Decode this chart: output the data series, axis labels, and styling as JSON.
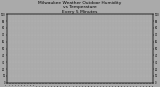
{
  "title": "Milwaukee Weather Outdoor Humidity\nvs Temperature\nEvery 5 Minutes",
  "title_fontsize": 3.2,
  "bg_color": "#aaaaaa",
  "plot_bg_color": "#aaaaaa",
  "blue_color": "#0000ee",
  "red_color": "#dd0000",
  "n_points": 288,
  "dot_size": 0.4,
  "ylim": [
    0,
    100
  ],
  "grid_color": "#cccccc",
  "x_tick_count": 48,
  "y_tick_spacing": 10
}
